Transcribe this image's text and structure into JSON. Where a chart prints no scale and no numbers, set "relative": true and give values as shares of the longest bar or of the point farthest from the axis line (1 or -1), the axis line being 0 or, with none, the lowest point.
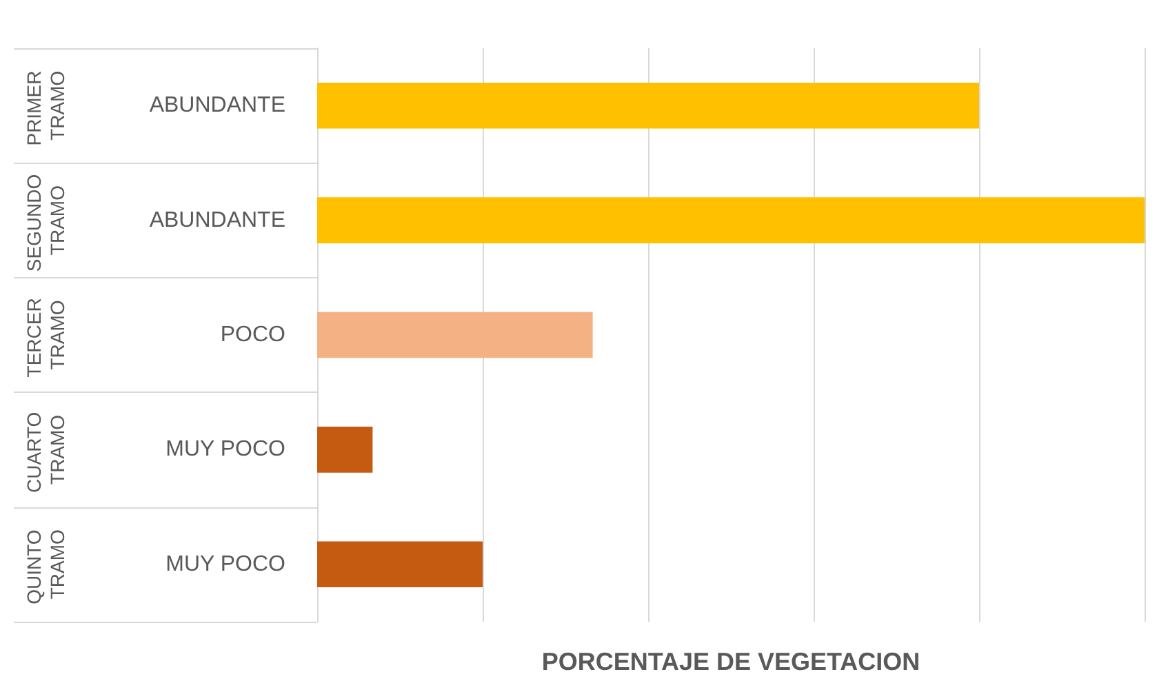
{
  "chart_data": {
    "type": "bar",
    "orientation": "horizontal",
    "relative": true,
    "xlabel": "PORCENTAJE DE VEGETACION",
    "categories": [
      "PRIMER TRAMO",
      "SEGUNDO TRAMO",
      "TERCER TRAMO",
      "CUARTO TRAMO",
      "QUINTO TRAMO"
    ],
    "values": [
      0.8,
      1,
      0.333,
      0.067,
      0.2
    ],
    "colors": [
      "#ffc000",
      "#ffc000",
      "#f4b183",
      "#c55a11",
      "#c55a11"
    ],
    "annotations": [
      "ABUNDANTE",
      "ABUNDANTE",
      "POCO",
      "MUY POCO",
      "MUY POCO"
    ],
    "grid": "x"
  }
}
